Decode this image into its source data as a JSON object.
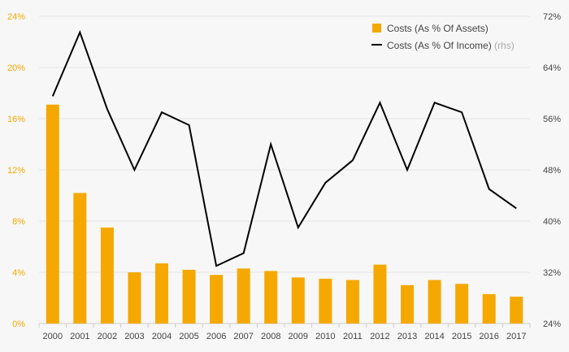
{
  "chart_data": {
    "type": "bar+line",
    "categories": [
      "2000",
      "2001",
      "2002",
      "2003",
      "2004",
      "2005",
      "2006",
      "2007",
      "2008",
      "2009",
      "2010",
      "2011",
      "2012",
      "2013",
      "2014",
      "2015",
      "2016",
      "2017"
    ],
    "series": [
      {
        "name": "Costs (As % Of Assets)",
        "type": "bar",
        "axis": "left",
        "color": "#f5a800",
        "values": [
          17.1,
          10.2,
          7.5,
          4.0,
          4.7,
          4.2,
          3.8,
          4.3,
          4.1,
          3.6,
          3.5,
          3.4,
          4.6,
          3.0,
          3.4,
          3.1,
          2.3,
          2.1
        ]
      },
      {
        "name": "Costs (As % Of Income)",
        "type": "line",
        "axis": "right",
        "color": "#000000",
        "values": [
          59.5,
          69.5,
          57.5,
          48.0,
          57.0,
          55.0,
          33.0,
          35.0,
          52.0,
          39.0,
          46.0,
          49.5,
          58.5,
          48.0,
          58.5,
          57.0,
          45.0,
          42.0
        ]
      }
    ],
    "left_axis": {
      "ylim": [
        0,
        24
      ],
      "ticks": [
        "0%",
        "4%",
        "8%",
        "12%",
        "16%",
        "20%",
        "24%"
      ],
      "tick_values": [
        0,
        4,
        8,
        12,
        16,
        20,
        24
      ]
    },
    "right_axis": {
      "ylim": [
        24,
        72
      ],
      "ticks": [
        "24%",
        "32%",
        "40%",
        "48%",
        "56%",
        "64%",
        "72%"
      ],
      "tick_values": [
        24,
        32,
        40,
        48,
        56,
        64,
        72
      ]
    },
    "legend": {
      "bar_label": "Costs (As % Of Assets)",
      "line_label": "Costs (As % Of Income)",
      "line_suffix": "(rhs)",
      "placement": "top-right"
    },
    "grid": true
  }
}
